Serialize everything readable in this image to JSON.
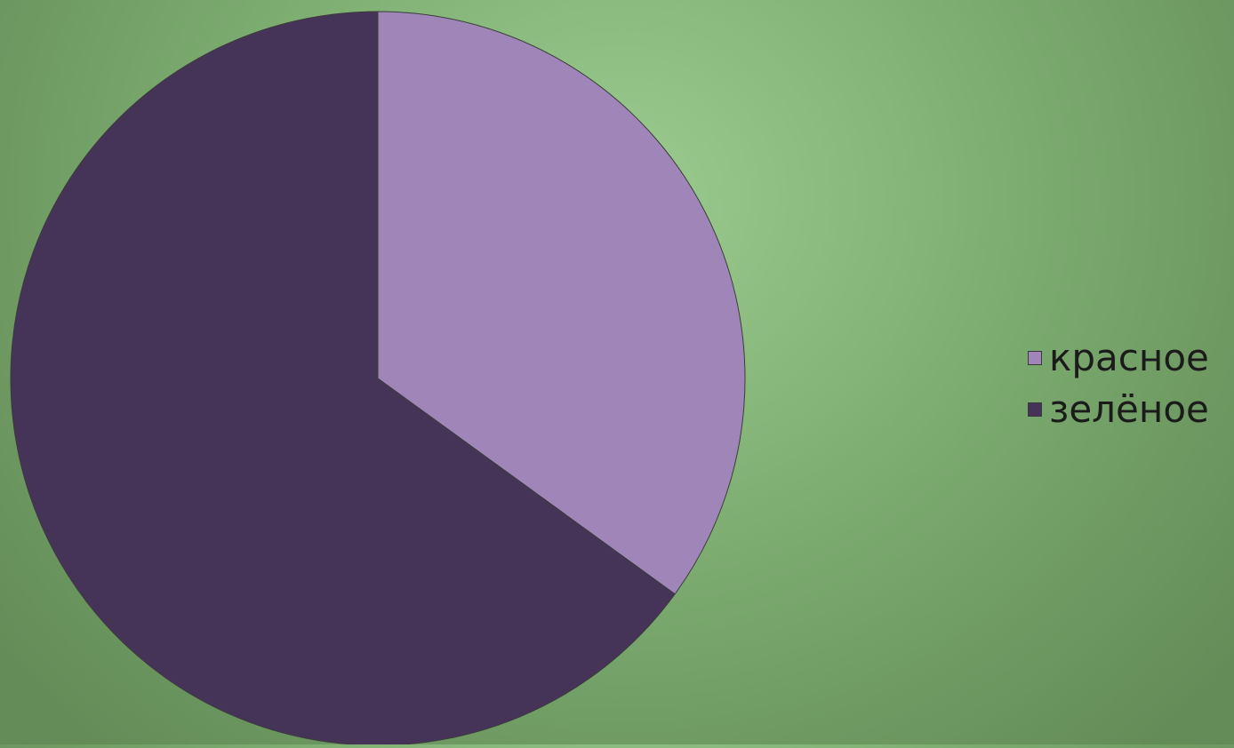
{
  "chart_data": {
    "type": "pie",
    "title": "",
    "start_angle_deg": 90,
    "direction": "clockwise",
    "slices": [
      {
        "label": "красное",
        "value": 35,
        "color": "#a086b8"
      },
      {
        "label": "зелёное",
        "value": 65,
        "color": "#463458"
      }
    ],
    "legend_position": "right"
  }
}
